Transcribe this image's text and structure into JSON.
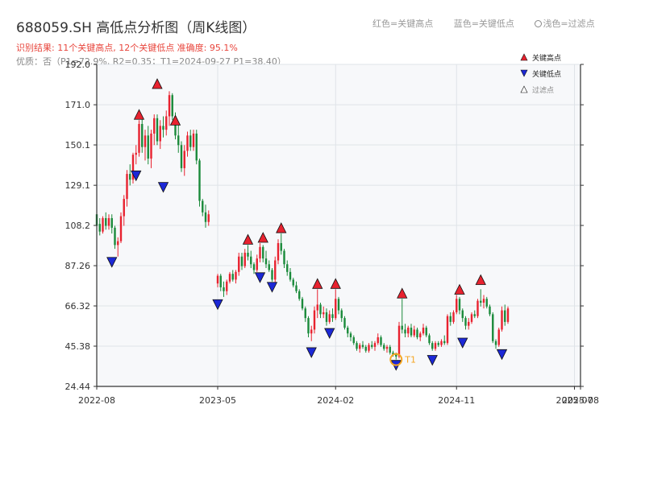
{
  "header": {
    "title": "688059.SH 高低点分析图（周K线图）",
    "summary": "识别结果: 11个关键高点, 12个关键低点   准确度: 95.1%",
    "detail": "优质：否（P1=72.9%, R2=0.35；T1=2024-09-27 P1=38.40）",
    "legend_red": "红色=关键高点",
    "legend_blue": "蓝色=关键低点",
    "legend_light": "浅色=过滤点"
  },
  "colors": {
    "up": "#e8222f",
    "down": "#1a8a3a",
    "key_high": "#e8222f",
    "key_low": "#1c28d6",
    "t1_marker": "#f5a623",
    "plot_bg": "#f7f8fa",
    "grid": "#dfe3e8"
  },
  "chart_data": {
    "type": "candlestick",
    "title": "688059.SH 高低点分析图（周K线图）",
    "y_ticks": [
      "24.44",
      "45.38",
      "66.32",
      "87.26",
      "108.2",
      "129.1",
      "150.1",
      "171.0",
      "192.0"
    ],
    "y_range": [
      24.44,
      192.0
    ],
    "x_ticks": [
      {
        "date": "2022-08",
        "week": 0
      },
      {
        "date": "2023-05",
        "week": 40
      },
      {
        "date": "2024-02",
        "week": 79
      },
      {
        "date": "2024-11",
        "week": 119
      },
      {
        "date": "2025-07",
        "week": 158
      },
      {
        "date": "2025-08",
        "week": 160
      }
    ],
    "x_range": [
      0,
      160
    ],
    "legend": [
      {
        "key": "high",
        "label": "关键高点"
      },
      {
        "key": "low",
        "label": "关键低点"
      },
      {
        "key": "filtered",
        "label": "过滤点"
      }
    ],
    "candles": [
      [
        0,
        114.0,
        117.0,
        104.0,
        108.0
      ],
      [
        1,
        109.0,
        112.0,
        103.0,
        105.0
      ],
      [
        2,
        105.0,
        113.0,
        104.0,
        112.0
      ],
      [
        3,
        112.0,
        115.0,
        106.0,
        108.0
      ],
      [
        4,
        108.0,
        114.0,
        106.0,
        112.0
      ],
      [
        5,
        112.0,
        114.0,
        104.0,
        107.0
      ],
      [
        6,
        107.0,
        108.0,
        96.0,
        98.0
      ],
      [
        7,
        98.0,
        102.0,
        92.0,
        100.0
      ],
      [
        8,
        100.0,
        115.0,
        99.0,
        113.0
      ],
      [
        9,
        113.0,
        124.0,
        108.0,
        122.0
      ],
      [
        10,
        122.0,
        137.0,
        118.0,
        135.0
      ],
      [
        11,
        135.0,
        140.0,
        129.0,
        132.0
      ],
      [
        12,
        132.0,
        146.0,
        130.0,
        145.0
      ],
      [
        13,
        145.0,
        150.0,
        140.0,
        146.0
      ],
      [
        14,
        146.0,
        163.0,
        144.0,
        161.0
      ],
      [
        15,
        161.0,
        165.0,
        146.0,
        149.0
      ],
      [
        16,
        149.0,
        158.0,
        142.0,
        155.0
      ],
      [
        17,
        155.0,
        160.0,
        140.0,
        143.0
      ],
      [
        18,
        143.0,
        158.0,
        138.0,
        156.0
      ],
      [
        19,
        156.0,
        166.0,
        150.0,
        164.0
      ],
      [
        20,
        164.0,
        166.0,
        150.0,
        152.0
      ],
      [
        21,
        152.0,
        163.0,
        148.0,
        160.0
      ],
      [
        22,
        160.0,
        165.0,
        154.0,
        158.0
      ],
      [
        23,
        158.0,
        168.0,
        155.0,
        165.0
      ],
      [
        24,
        165.0,
        178.0,
        160.0,
        176.0
      ],
      [
        25,
        176.0,
        177.0,
        163.0,
        165.0
      ],
      [
        26,
        165.0,
        167.0,
        153.0,
        155.0
      ],
      [
        27,
        155.0,
        162.0,
        146.0,
        150.0
      ],
      [
        28,
        150.0,
        152.0,
        136.0,
        138.0
      ],
      [
        29,
        138.0,
        150.0,
        134.0,
        147.0
      ],
      [
        30,
        147.0,
        157.0,
        144.0,
        155.0
      ],
      [
        31,
        155.0,
        158.0,
        147.0,
        149.0
      ],
      [
        32,
        149.0,
        158.0,
        147.0,
        156.0
      ],
      [
        33,
        156.0,
        158.0,
        140.0,
        142.0
      ],
      [
        34,
        142.0,
        143.0,
        118.0,
        121.0
      ],
      [
        35,
        121.0,
        122.0,
        113.0,
        115.0
      ],
      [
        36,
        115.0,
        119.0,
        107.0,
        110.0
      ],
      [
        37,
        110.0,
        116.0,
        108.0,
        114.0
      ],
      [
        40,
        78.0,
        83.0,
        76.0,
        82.0
      ],
      [
        41,
        82.0,
        83.0,
        74.0,
        76.0
      ],
      [
        42,
        76.0,
        79.0,
        71.0,
        74.0
      ],
      [
        43,
        74.0,
        80.0,
        72.0,
        79.0
      ],
      [
        44,
        79.0,
        84.0,
        78.0,
        83.0
      ],
      [
        45,
        83.0,
        85.0,
        79.0,
        80.0
      ],
      [
        46,
        80.0,
        85.0,
        78.0,
        84.0
      ],
      [
        47,
        84.0,
        94.0,
        82.0,
        92.0
      ],
      [
        48,
        92.0,
        94.0,
        85.0,
        87.0
      ],
      [
        49,
        87.0,
        96.0,
        86.0,
        94.0
      ],
      [
        50,
        94.0,
        98.0,
        90.0,
        92.0
      ],
      [
        51,
        92.0,
        95.0,
        86.0,
        88.0
      ],
      [
        52,
        88.0,
        89.0,
        83.0,
        85.0
      ],
      [
        53,
        85.0,
        93.0,
        84.0,
        91.0
      ],
      [
        54,
        91.0,
        99.0,
        89.0,
        97.0
      ],
      [
        55,
        97.0,
        98.0,
        89.0,
        91.0
      ],
      [
        56,
        91.0,
        95.0,
        86.0,
        88.0
      ],
      [
        57,
        88.0,
        90.0,
        84.0,
        85.0
      ],
      [
        58,
        85.0,
        86.0,
        79.0,
        80.0
      ],
      [
        59,
        80.0,
        92.0,
        78.0,
        90.0
      ],
      [
        60,
        90.0,
        101.0,
        88.0,
        99.0
      ],
      [
        61,
        99.0,
        104.0,
        93.0,
        95.0
      ],
      [
        62,
        95.0,
        96.0,
        86.0,
        88.0
      ],
      [
        63,
        88.0,
        90.0,
        82.0,
        84.0
      ],
      [
        64,
        84.0,
        86.0,
        79.0,
        80.0
      ],
      [
        65,
        80.0,
        81.0,
        76.0,
        77.0
      ],
      [
        66,
        77.0,
        79.0,
        73.0,
        74.0
      ],
      [
        67,
        74.0,
        75.0,
        69.0,
        70.0
      ],
      [
        68,
        70.0,
        71.0,
        64.0,
        65.0
      ],
      [
        69,
        65.0,
        66.0,
        58.0,
        60.0
      ],
      [
        70,
        60.0,
        61.0,
        50.0,
        52.0
      ],
      [
        71,
        52.0,
        56.0,
        48.0,
        54.0
      ],
      [
        72,
        54.0,
        66.0,
        52.0,
        64.0
      ],
      [
        73,
        64.0,
        75.0,
        60.0,
        67.0
      ],
      [
        74,
        67.0,
        68.0,
        60.0,
        62.0
      ],
      [
        75,
        62.0,
        66.0,
        60.0,
        63.0
      ],
      [
        76,
        63.0,
        65.0,
        56.0,
        58.0
      ],
      [
        77,
        58.0,
        64.0,
        57.0,
        62.0
      ],
      [
        78,
        62.0,
        65.0,
        58.0,
        60.0
      ],
      [
        79,
        60.0,
        75.0,
        59.0,
        70.0
      ],
      [
        80,
        70.0,
        71.0,
        62.0,
        64.0
      ],
      [
        81,
        64.0,
        65.0,
        58.0,
        60.0
      ],
      [
        82,
        60.0,
        61.0,
        54.0,
        55.0
      ],
      [
        83,
        55.0,
        56.0,
        50.0,
        52.0
      ],
      [
        84,
        52.0,
        53.0,
        48.0,
        50.0
      ],
      [
        85,
        50.0,
        51.0,
        46.0,
        47.0
      ],
      [
        86,
        47.0,
        48.0,
        43.0,
        44.0
      ],
      [
        87,
        44.0,
        47.0,
        42.0,
        46.0
      ],
      [
        88,
        46.0,
        48.0,
        44.0,
        45.0
      ],
      [
        89,
        45.0,
        46.0,
        42.0,
        43.0
      ],
      [
        90,
        43.0,
        47.0,
        42.0,
        46.0
      ],
      [
        91,
        46.0,
        48.0,
        44.0,
        45.0
      ],
      [
        92,
        45.0,
        48.0,
        43.0,
        47.0
      ],
      [
        93,
        47.0,
        52.0,
        46.0,
        50.0
      ],
      [
        94,
        50.0,
        51.0,
        45.0,
        46.0
      ],
      [
        95,
        46.0,
        47.0,
        43.0,
        44.0
      ],
      [
        96,
        44.0,
        46.0,
        42.0,
        45.0
      ],
      [
        97,
        45.0,
        46.0,
        41.0,
        42.0
      ],
      [
        98,
        42.0,
        43.0,
        40.0,
        41.0
      ],
      [
        99,
        41.0,
        42.0,
        38.4,
        40.0
      ],
      [
        100,
        40.0,
        58.0,
        39.0,
        56.0
      ],
      [
        101,
        56.0,
        70.0,
        52.0,
        54.0
      ],
      [
        102,
        54.0,
        57.0,
        50.0,
        52.0
      ],
      [
        103,
        52.0,
        56.0,
        50.0,
        55.0
      ],
      [
        104,
        55.0,
        57.0,
        50.0,
        51.0
      ],
      [
        105,
        51.0,
        56.0,
        50.0,
        54.0
      ],
      [
        106,
        54.0,
        55.0,
        49.0,
        50.0
      ],
      [
        107,
        50.0,
        53.0,
        48.0,
        52.0
      ],
      [
        108,
        52.0,
        57.0,
        51.0,
        55.0
      ],
      [
        109,
        55.0,
        56.0,
        50.0,
        51.0
      ],
      [
        110,
        51.0,
        52.0,
        46.0,
        47.0
      ],
      [
        111,
        47.0,
        48.0,
        43.0,
        44.0
      ],
      [
        112,
        44.0,
        48.0,
        43.0,
        47.0
      ],
      [
        113,
        47.0,
        48.0,
        45.0,
        46.0
      ],
      [
        114,
        46.0,
        49.0,
        45.0,
        48.0
      ],
      [
        115,
        48.0,
        51.0,
        46.0,
        47.0
      ],
      [
        116,
        47.0,
        62.0,
        46.0,
        61.0
      ],
      [
        117,
        61.0,
        63.0,
        56.0,
        58.0
      ],
      [
        118,
        58.0,
        64.0,
        57.0,
        63.0
      ],
      [
        119,
        63.0,
        72.0,
        62.0,
        70.0
      ],
      [
        120,
        70.0,
        71.0,
        62.0,
        64.0
      ],
      [
        121,
        64.0,
        65.0,
        58.0,
        60.0
      ],
      [
        122,
        60.0,
        61.0,
        54.0,
        56.0
      ],
      [
        123,
        56.0,
        60.0,
        54.0,
        58.0
      ],
      [
        124,
        58.0,
        63.0,
        57.0,
        62.0
      ],
      [
        125,
        62.0,
        64.0,
        60.0,
        61.0
      ],
      [
        126,
        61.0,
        70.0,
        60.0,
        69.0
      ],
      [
        127,
        69.0,
        75.0,
        66.0,
        68.0
      ],
      [
        128,
        68.0,
        72.0,
        65.0,
        70.0
      ],
      [
        129,
        70.0,
        71.0,
        65.0,
        66.0
      ],
      [
        130,
        66.0,
        67.0,
        61.0,
        62.0
      ],
      [
        131,
        62.0,
        63.0,
        47.0,
        48.0
      ],
      [
        132,
        48.0,
        49.0,
        44.0,
        46.0
      ],
      [
        133,
        46.0,
        55.0,
        45.0,
        54.0
      ],
      [
        134,
        54.0,
        66.0,
        53.0,
        64.0
      ],
      [
        135,
        64.0,
        67.0,
        56.0,
        58.0
      ],
      [
        136,
        58.0,
        66.0,
        57.0,
        65.0
      ]
    ],
    "key_highs": [
      [
        14,
        163.0
      ],
      [
        20,
        179.0
      ],
      [
        26,
        160.0
      ],
      [
        50,
        98.0
      ],
      [
        55,
        99.0
      ],
      [
        61,
        104.0
      ],
      [
        73,
        75.0
      ],
      [
        79,
        75.0
      ],
      [
        101,
        70.0
      ],
      [
        120,
        72.0
      ],
      [
        127,
        77.0
      ]
    ],
    "key_lows": [
      [
        5,
        92.0
      ],
      [
        13,
        137.0
      ],
      [
        22,
        131.0
      ],
      [
        40,
        70.0
      ],
      [
        54,
        84.0
      ],
      [
        58,
        79.0
      ],
      [
        71,
        45.0
      ],
      [
        77,
        55.0
      ],
      [
        99,
        38.4
      ],
      [
        111,
        41.0
      ],
      [
        121,
        50.0
      ],
      [
        134,
        44.0
      ]
    ],
    "t1": {
      "week": 99,
      "price": 38.4,
      "label": "T1"
    }
  }
}
